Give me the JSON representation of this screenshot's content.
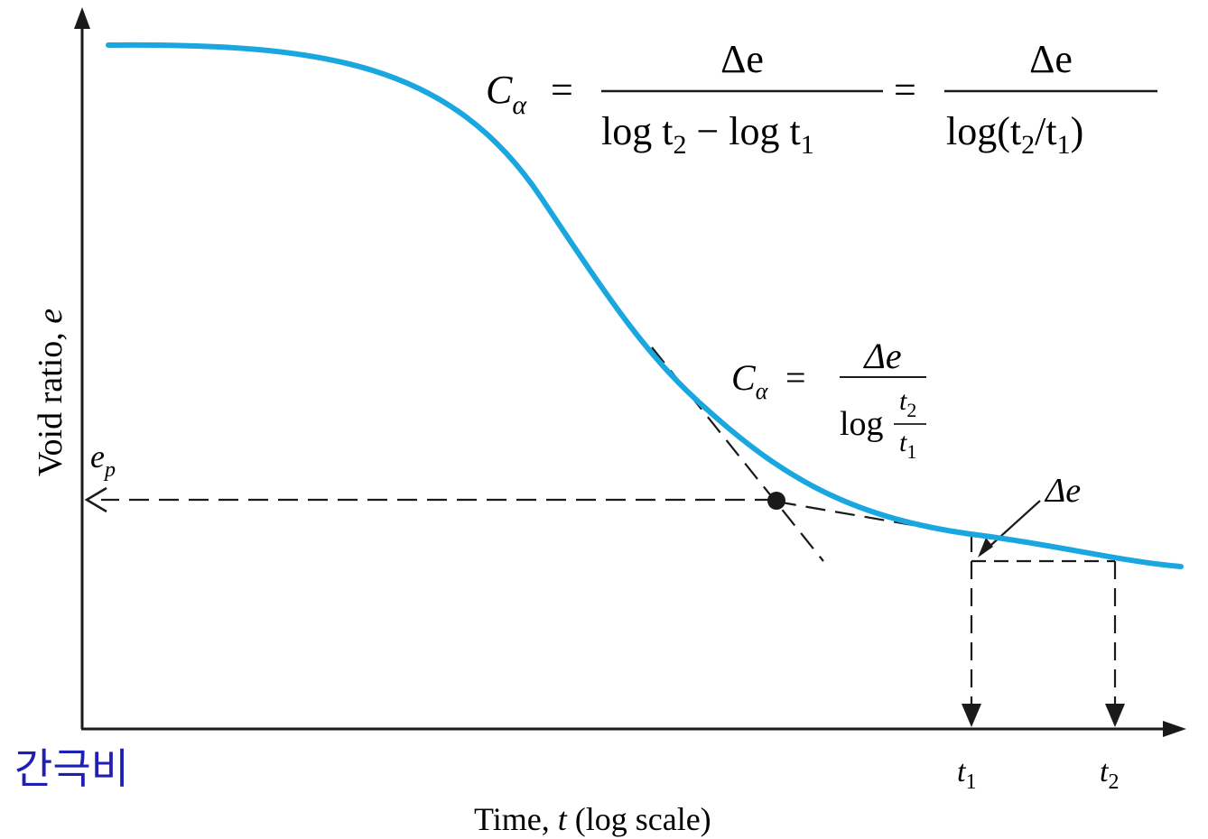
{
  "axes": {
    "y_label_text": "Void ratio, ",
    "y_label_var": "e",
    "x_label_prefix": "Time, ",
    "x_label_var": "t",
    "x_label_suffix": " (log scale)"
  },
  "korean_label": "간극비",
  "ep_label": {
    "main": "e",
    "sub": "p"
  },
  "delta_e_label": "Δe",
  "t1_label": {
    "main": "t",
    "sub": "1"
  },
  "t2_label": {
    "main": "t",
    "sub": "2"
  },
  "top_formula": {
    "lhs_main": "C",
    "lhs_sub": "α",
    "eq": "=",
    "num1": "Δe",
    "den1_a": "log t",
    "den1_a_sub": "2",
    "den1_minus": " − log t",
    "den1_b_sub": "1",
    "eq2": "=",
    "num2": "Δe",
    "den2_a": "log(t",
    "den2_a_sub": "2",
    "den2_mid": "/t",
    "den2_b_sub": "1",
    "den2_close": ")"
  },
  "mid_formula": {
    "lhs_main": "C",
    "lhs_sub": "α",
    "eq": "=",
    "num": "Δe",
    "log": "log",
    "frac_num_main": "t",
    "frac_num_sub": "2",
    "frac_den_main": "t",
    "frac_den_sub": "1"
  },
  "colors": {
    "curve": "#1aa7e0",
    "ink": "#1a1a1a",
    "korean": "#1f1fb4"
  }
}
